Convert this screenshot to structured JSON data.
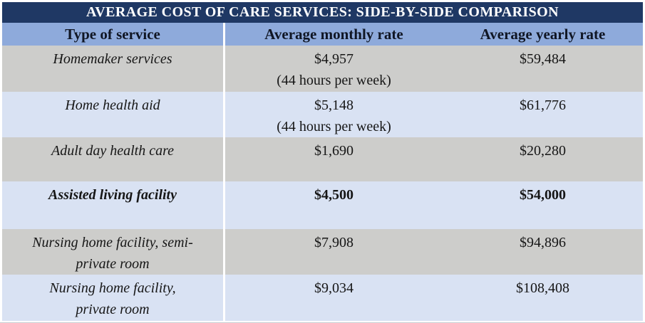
{
  "title": "AVERAGE COST OF CARE SERVICES: SIDE-BY-SIDE COMPARISON",
  "table": {
    "columns": [
      "Type of service",
      "Average monthly rate",
      "Average yearly rate"
    ],
    "rows": [
      {
        "service": [
          "Homemaker services"
        ],
        "monthly": [
          "$4,957",
          "(44 hours per week)"
        ],
        "yearly": [
          "$59,484"
        ],
        "bold": false
      },
      {
        "service": [
          "Home health aid"
        ],
        "monthly": [
          "$5,148",
          "(44 hours per week)"
        ],
        "yearly": [
          "$61,776"
        ],
        "bold": false
      },
      {
        "service": [
          "Adult day health care"
        ],
        "monthly": [
          "$1,690"
        ],
        "yearly": [
          "$20,280"
        ],
        "bold": false
      },
      {
        "service": [
          "Assisted living facility"
        ],
        "monthly": [
          "$4,500"
        ],
        "yearly": [
          "$54,000"
        ],
        "bold": true
      },
      {
        "service": [
          "Nursing home facility, semi-",
          "private room"
        ],
        "monthly": [
          "$7,908"
        ],
        "yearly": [
          "$94,896"
        ],
        "bold": false
      },
      {
        "service": [
          "Nursing home facility,",
          "private room"
        ],
        "monthly": [
          "$9,034"
        ],
        "yearly": [
          "$108,408"
        ],
        "bold": false
      }
    ]
  },
  "colors": {
    "title_bg": "#1F3864",
    "header_bg": "#8EAADB",
    "row_gray": "#CDCDCB",
    "row_blue": "#D9E2F3"
  }
}
